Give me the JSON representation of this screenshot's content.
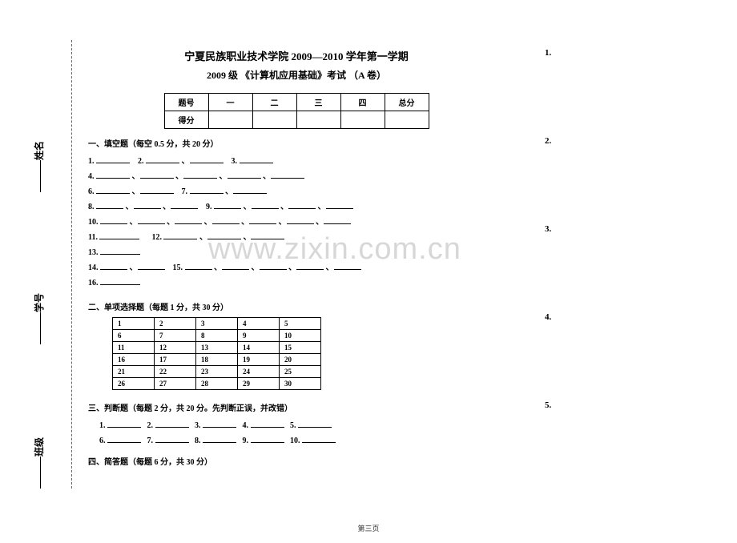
{
  "vertical": {
    "name": "姓名",
    "id": "学号",
    "cls": "班级"
  },
  "header": {
    "line1_prefix": "宁夏民族职业技术学院 2009",
    "line1_dash": "—",
    "line1_suffix": "2010 学年第一学期",
    "line2": "2009 级  《计算机应用基础》考试   （A 卷）"
  },
  "score_table": {
    "row1": [
      "题号",
      "一",
      "二",
      "三",
      "四",
      "总分"
    ],
    "row2_label": "得分"
  },
  "section1": {
    "heading": "一、填空题（每空 0.5 分，共 20 分）"
  },
  "section2": {
    "heading": "二、单项选择题（每题 1 分，共  30  分）",
    "numbers": [
      [
        "1",
        "2",
        "3",
        "4",
        "5"
      ],
      [
        "6",
        "7",
        "8",
        "9",
        "10"
      ],
      [
        "11",
        "12",
        "13",
        "14",
        "15"
      ],
      [
        "16",
        "17",
        "18",
        "19",
        "20"
      ],
      [
        "21",
        "22",
        "23",
        "24",
        "25"
      ],
      [
        "26",
        "27",
        "28",
        "29",
        "30"
      ]
    ]
  },
  "section3": {
    "heading": "三、判断题（每题 2 分，共 20 分。先判断正误，并改错）"
  },
  "section4": {
    "heading": "四、简答题（每题 6 分，共 30 分）"
  },
  "right_numbers": [
    "1.",
    "2.",
    "3.",
    "4.",
    "5."
  ],
  "watermark": "www.zixin.com.cn",
  "footer": "第三页"
}
